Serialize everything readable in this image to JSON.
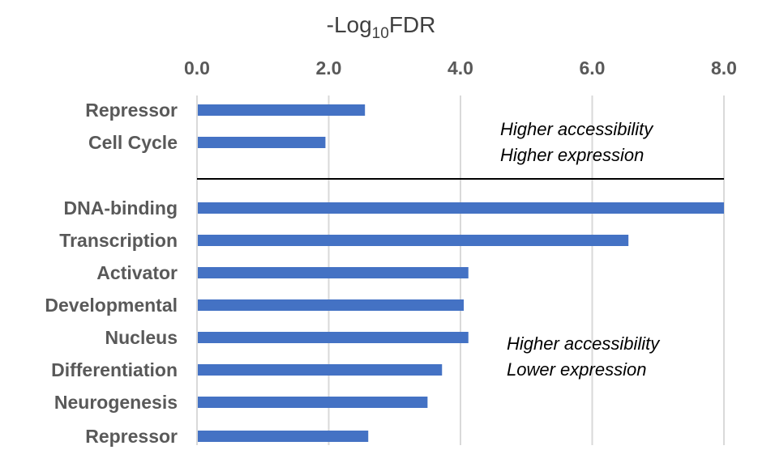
{
  "chart_data": {
    "type": "bar",
    "orientation": "horizontal",
    "xlabel": {
      "prefix": "-Log",
      "subscript": "10",
      "suffix": "FDR"
    },
    "xlim": [
      0,
      8
    ],
    "xticks": [
      "0.0",
      "2.0",
      "4.0",
      "6.0",
      "8.0"
    ],
    "grid": true,
    "groups": [
      {
        "categories": [
          "Repressor",
          "Cell Cycle"
        ],
        "values": [
          2.55,
          1.95
        ],
        "annotation": [
          "Higher accessibility",
          "Higher expression"
        ]
      },
      {
        "categories": [
          "DNA-binding",
          "Transcription",
          "Activator",
          "Developmental",
          "Nucleus",
          "Differentiation",
          "Neurogenesis",
          "Repressor"
        ],
        "values": [
          8.0,
          6.55,
          4.12,
          4.05,
          4.12,
          3.72,
          3.5,
          2.6
        ],
        "annotation": [
          "Higher accessibility",
          "Lower expression"
        ]
      }
    ],
    "bar_color": "#4472C4"
  }
}
